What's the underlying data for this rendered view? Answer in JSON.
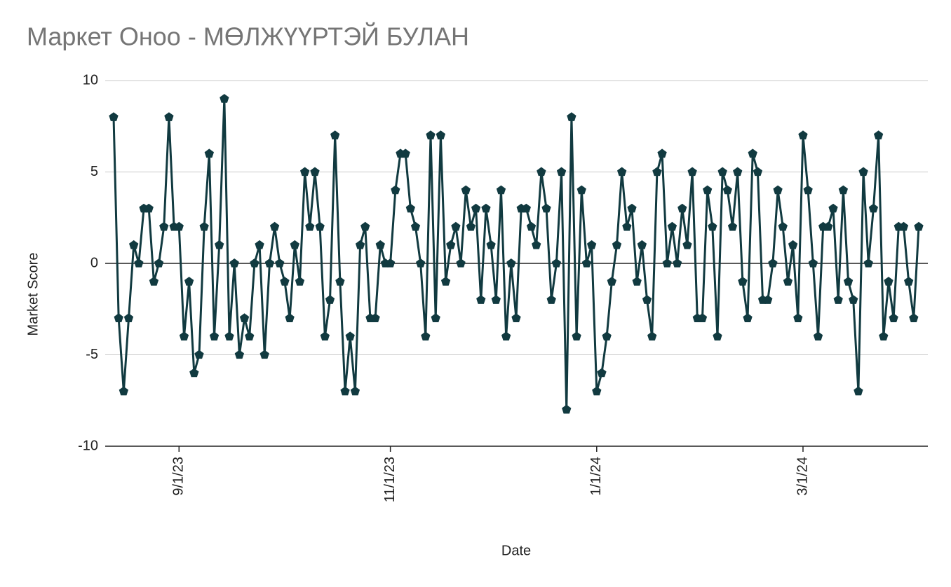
{
  "chart_data": {
    "type": "line",
    "title": "Маркет Оноо - МӨЛЖҮҮРТЭЙ БУЛАН",
    "x_label": "Date",
    "y_label": "Market Score",
    "categories": [
      null,
      null,
      null,
      null,
      null,
      null,
      null,
      null,
      null,
      null,
      null,
      null,
      null,
      "9/1/23",
      null,
      null,
      null,
      null,
      null,
      null,
      null,
      null,
      null,
      null,
      null,
      null,
      null,
      null,
      null,
      null,
      null,
      null,
      null,
      null,
      null,
      null,
      null,
      null,
      null,
      null,
      null,
      null,
      null,
      null,
      null,
      null,
      null,
      null,
      null,
      null,
      null,
      null,
      null,
      null,
      null,
      "11/1/23",
      null,
      null,
      null,
      null,
      null,
      null,
      null,
      null,
      null,
      null,
      null,
      null,
      null,
      null,
      null,
      null,
      null,
      null,
      null,
      null,
      null,
      null,
      null,
      null,
      null,
      null,
      null,
      null,
      null,
      null,
      null,
      null,
      null,
      null,
      null,
      null,
      null,
      null,
      null,
      null,
      "1/1/24",
      null,
      null,
      null,
      null,
      null,
      null,
      null,
      null,
      null,
      null,
      null,
      null,
      null,
      null,
      null,
      null,
      null,
      null,
      null,
      null,
      null,
      null,
      null,
      null,
      null,
      null,
      null,
      null,
      null,
      null,
      null,
      null,
      null,
      null,
      null,
      null,
      null,
      null,
      null,
      null,
      "3/1/24",
      null,
      null,
      null,
      null,
      null,
      null,
      null,
      null,
      null,
      null,
      null,
      null,
      null,
      null,
      null,
      null,
      null,
      null,
      null,
      null,
      null,
      null,
      null
    ],
    "values": [
      8,
      -3,
      -7,
      -3,
      1,
      0,
      3,
      3,
      -1,
      0,
      2,
      8,
      2,
      2,
      -4,
      -1,
      -6,
      -5,
      2,
      6,
      -4,
      1,
      9,
      -4,
      0,
      -5,
      -3,
      -4,
      0,
      1,
      -5,
      0,
      2,
      0,
      -1,
      -3,
      1,
      -1,
      5,
      2,
      5,
      2,
      -4,
      -2,
      7,
      -1,
      -7,
      -4,
      -7,
      1,
      2,
      -3,
      -3,
      1,
      0,
      0,
      4,
      6,
      6,
      3,
      2,
      0,
      -4,
      7,
      -3,
      7,
      -1,
      1,
      2,
      0,
      4,
      2,
      3,
      -2,
      3,
      1,
      -2,
      4,
      -4,
      0,
      -3,
      3,
      3,
      2,
      1,
      5,
      3,
      -2,
      0,
      5,
      -8,
      8,
      -4,
      4,
      0,
      1,
      -7,
      -6,
      -4,
      -1,
      1,
      5,
      2,
      3,
      -1,
      1,
      -2,
      -4,
      5,
      6,
      0,
      2,
      0,
      3,
      1,
      5,
      -3,
      -3,
      4,
      2,
      -4,
      5,
      4,
      2,
      5,
      -1,
      -3,
      6,
      5,
      -2,
      -2,
      0,
      4,
      2,
      -1,
      1,
      -3,
      7,
      4,
      0,
      -4,
      2,
      2,
      3,
      -2,
      4,
      -1,
      -2,
      -7,
      5,
      0,
      3,
      7,
      -4,
      -1,
      -3,
      2,
      2,
      -1,
      -3,
      2
    ],
    "color": "#113a40",
    "ylim": [
      -10,
      10
    ],
    "yticks": [
      -10,
      -5,
      0,
      5,
      10
    ],
    "grid": true
  }
}
